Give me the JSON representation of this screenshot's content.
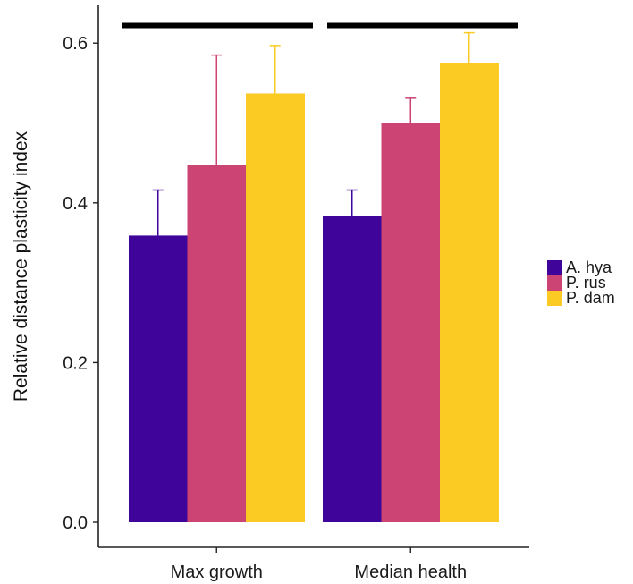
{
  "chart_data": {
    "type": "bar",
    "title": "",
    "xlabel": "",
    "ylabel": "Relative distance plasticity index",
    "categories": [
      "Max growth",
      "Median health"
    ],
    "series": [
      {
        "name": "A. hya",
        "color": "#3f049a",
        "values": [
          0.359,
          0.384
        ],
        "error_upper": [
          0.416,
          0.416
        ]
      },
      {
        "name": "P. rus",
        "color": "#cb4474",
        "values": [
          0.447,
          0.5
        ],
        "error_upper": [
          0.585,
          0.531
        ]
      },
      {
        "name": "P. dam",
        "color": "#fbcb24",
        "values": [
          0.537,
          0.575
        ],
        "error_upper": [
          0.597,
          0.613
        ]
      }
    ],
    "ylim": [
      0,
      0.64
    ],
    "yticks": [
      0.0,
      0.2,
      0.4,
      0.6
    ],
    "ytick_labels": [
      "0.0",
      "0.2",
      "0.4",
      "0.6"
    ],
    "grid": false,
    "legend_position": "right",
    "significance_bars": true
  }
}
